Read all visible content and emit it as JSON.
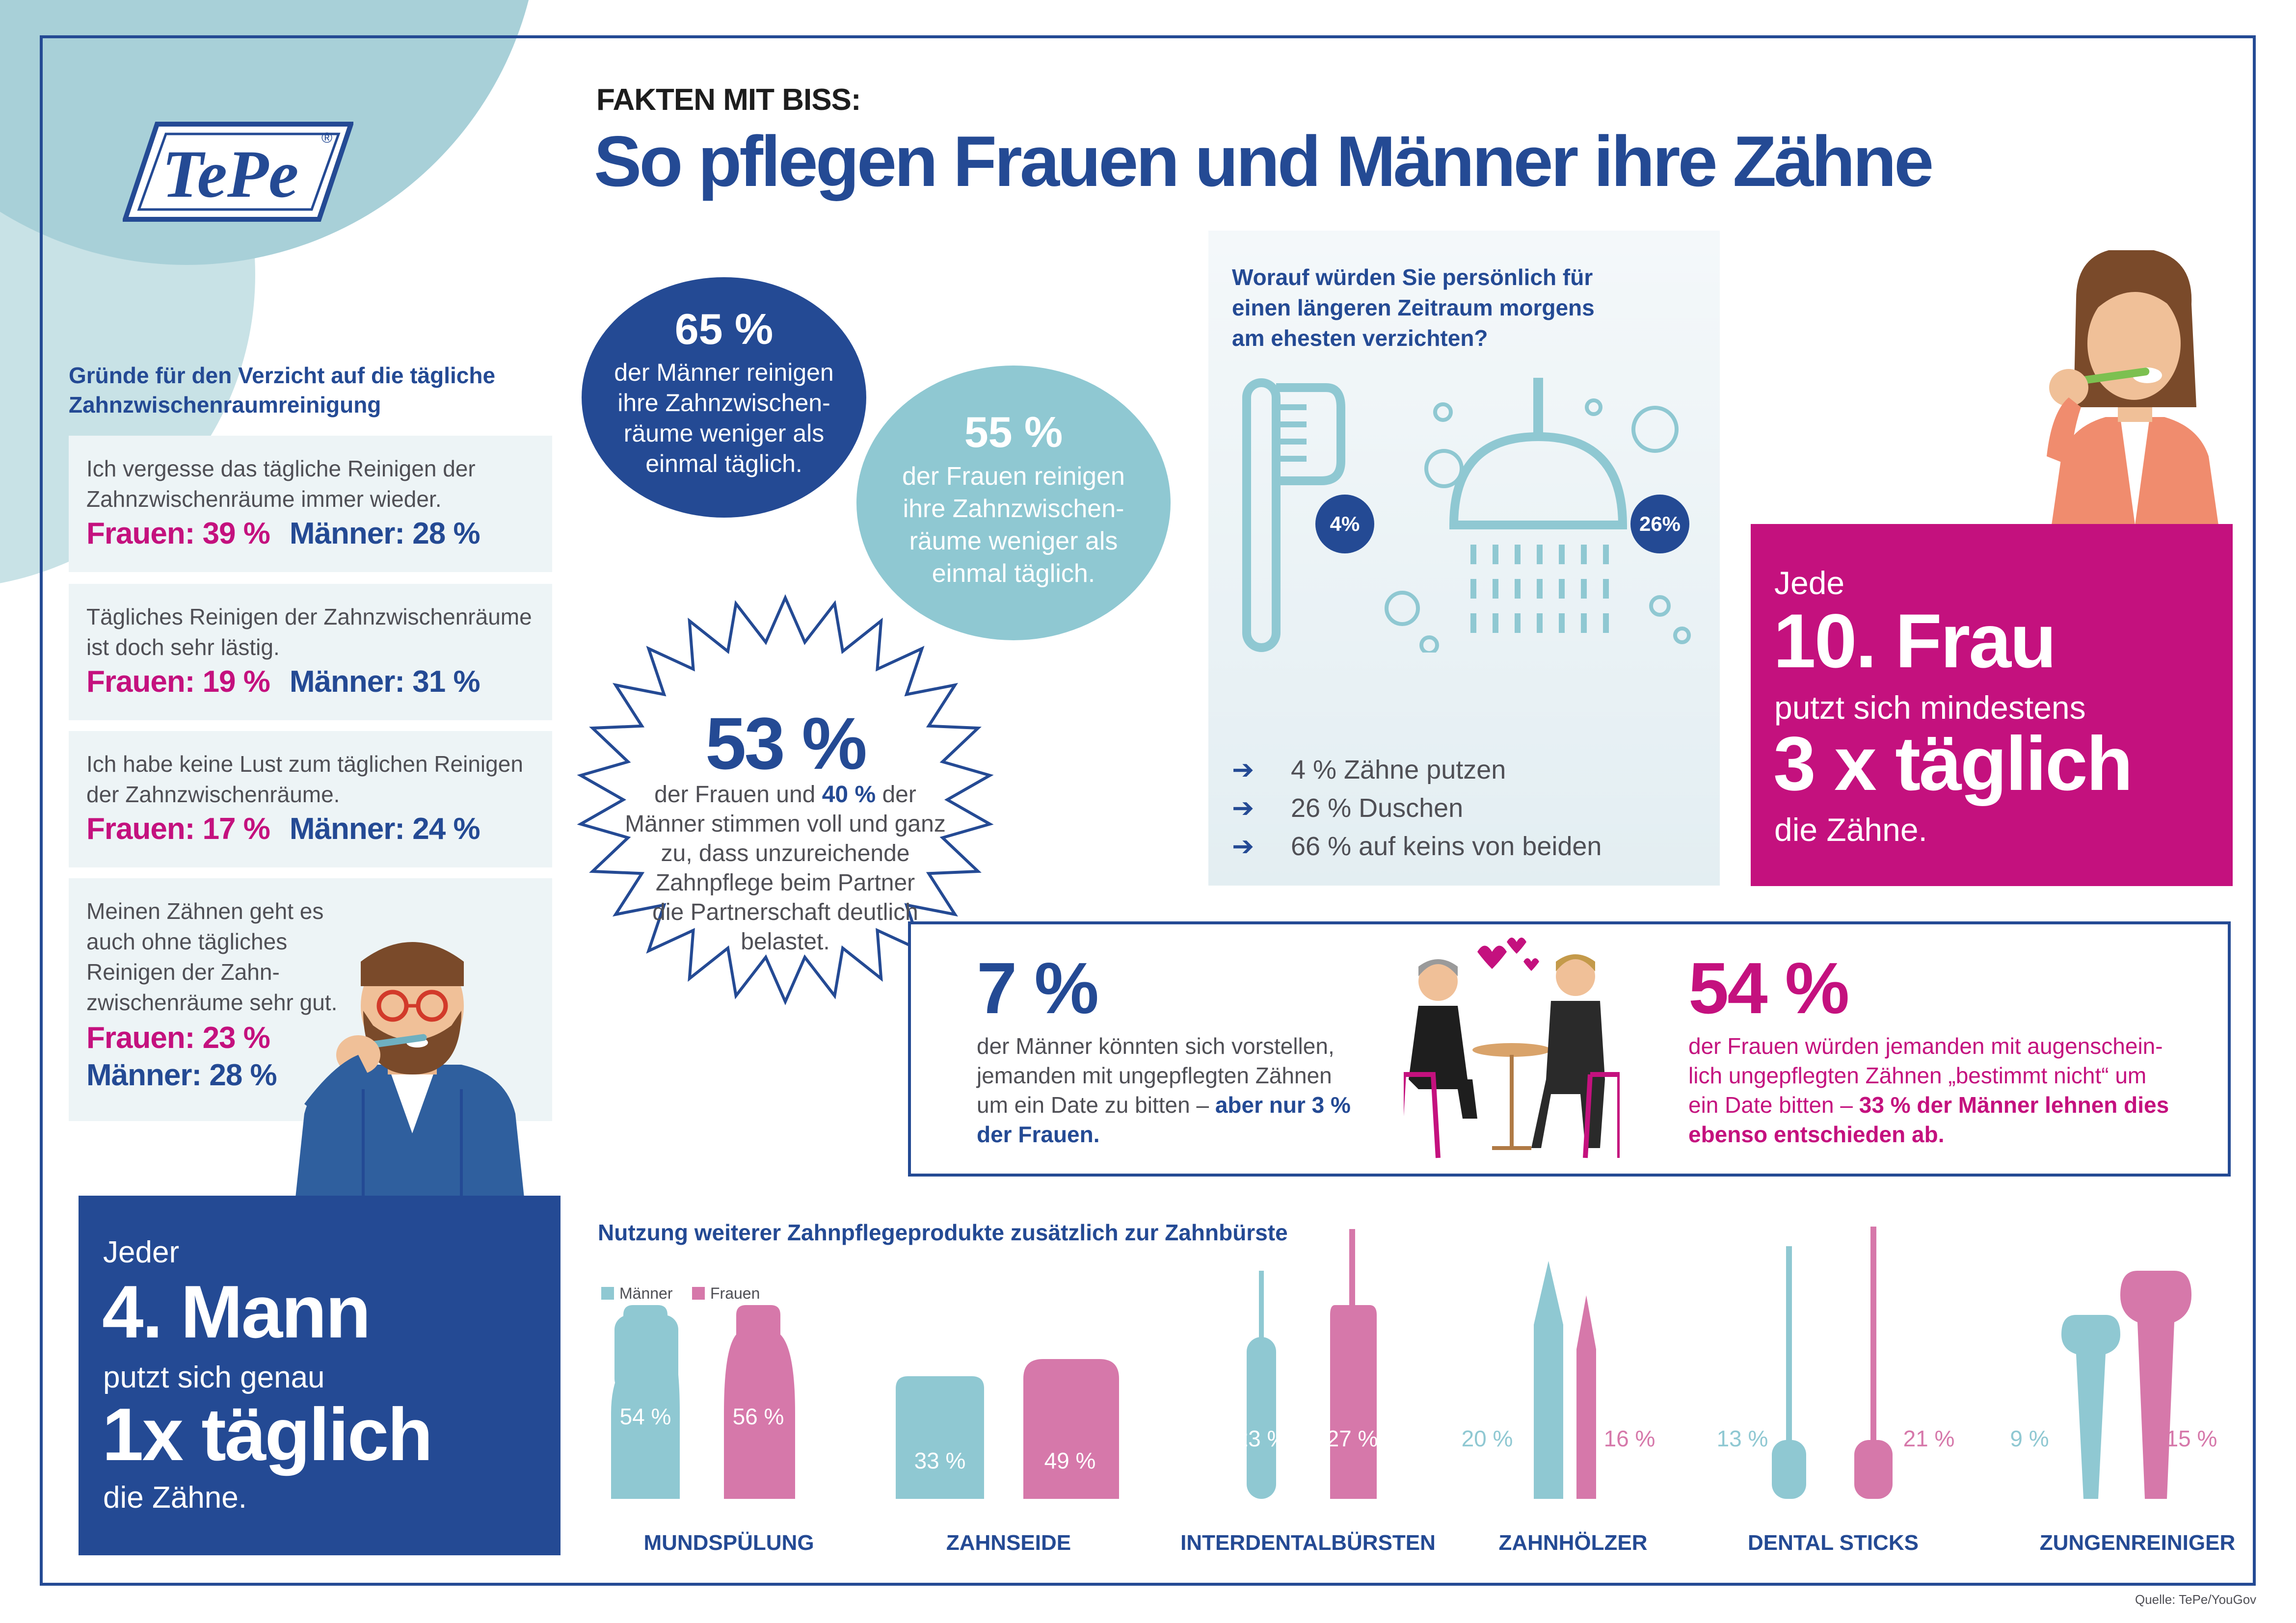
{
  "brand": {
    "logo": "TePe",
    "registered": "®"
  },
  "header": {
    "kicker": "FAKTEN MIT BISS:",
    "title": "So pflegen Frauen und Männer ihre Zähne"
  },
  "reasons": {
    "heading_line1": "Gründe für den Verzicht auf die tägliche",
    "heading_line2": "Zahnzwischenraumreinigung",
    "items": [
      {
        "lines": [
          "Ich vergesse das tägliche Reinigen der",
          "Zahnzwischenräume immer wieder."
        ],
        "frauen": "Frauen: 39 %",
        "maenner": "Männer: 28 %"
      },
      {
        "lines": [
          "Tägliches Reinigen der Zahnzwischenräume",
          "ist doch sehr lästig."
        ],
        "frauen": "Frauen: 19 %",
        "maenner": "Männer: 31 %"
      },
      {
        "lines": [
          "Ich habe keine Lust zum täglichen Reinigen",
          "der Zahnzwischenräume."
        ],
        "frauen": "Frauen: 17 %",
        "maenner": "Männer: 24 %"
      },
      {
        "lines": [
          "Meinen Zähnen geht es",
          "auch ohne tägliches",
          "Reinigen der Zahn-",
          "zwischenräume sehr gut."
        ],
        "frauen": "Frauen: 23 %",
        "maenner": "Männer: 28 %"
      }
    ]
  },
  "men_circle": {
    "value": "65 %",
    "lines": [
      "der Männer reinigen",
      "ihre Zahnzwischen-",
      "räume weniger als",
      "einmal täglich."
    ]
  },
  "women_circle": {
    "value": "55 %",
    "lines": [
      "der Frauen reinigen",
      "ihre Zahnzwischen-",
      "räume weniger als",
      "einmal täglich."
    ]
  },
  "burst": {
    "value": "53 %",
    "line1_a": "der Frauen und ",
    "line1_b": "40 %",
    "line1_c": " der",
    "lines": [
      "Männer stimmen voll und ganz",
      "zu, dass unzureichende",
      "Zahnpflege beim Partner",
      "die Partnerschaft deutlich",
      "belastet."
    ]
  },
  "survey": {
    "question_lines": [
      "Worauf würden Sie persönlich für",
      "einen längeren Zeitraum morgens",
      "am ehesten verzichten?"
    ],
    "badge_left": "4%",
    "badge_right": "26%",
    "answers": [
      "4 % Zähne putzen",
      "26 % Duschen",
      "66 % auf keins von beiden"
    ],
    "arrow_glyph": "➔"
  },
  "woman_box": {
    "l1": "Jede",
    "l2": "10. Frau",
    "l3": "putzt sich mindestens",
    "l4": "3 x täglich",
    "l5": "die Zähne."
  },
  "man_box": {
    "l1": "Jeder",
    "l2": "4. Mann",
    "l3": "putzt sich genau",
    "l4": "1x täglich",
    "l5": "die Zähne."
  },
  "date": {
    "men_value": "7 %",
    "men_lines": [
      "der Männer könnten sich vorstellen,",
      "jemanden mit ungepflegten Zähnen"
    ],
    "men_line3_a": "um ein Date zu bitten – ",
    "men_line3_b": "aber nur 3 %",
    "men_line4": "der Frauen.",
    "women_value": "54 %",
    "women_lines": [
      "der Frauen würden jemanden mit augenschein-",
      "lich ungepflegten Zähnen „bestimmt nicht“ um"
    ],
    "women_line3_a": "ein Date bitten –  ",
    "women_line3_b": "33 % der Männer lehnen dies",
    "women_line4": "ebenso entschieden ab."
  },
  "products": {
    "heading": "Nutzung weiterer Zahnpflegeprodukte zusätzlich zur Zahnbürste",
    "legend": {
      "men": "Männer",
      "women": "Frauen"
    },
    "colors": {
      "men": "#8fc8d2",
      "women": "#d678aa"
    },
    "items": [
      {
        "name": "MUNDSPÜLUNG",
        "men": "54 %",
        "women": "56 %"
      },
      {
        "name": "ZAHNSEIDE",
        "men": "33 %",
        "women": "49 %"
      },
      {
        "name": "INTERDENTALBÜRSTEN",
        "men": "23 %",
        "women": "27 %"
      },
      {
        "name": "ZAHNHÖLZER",
        "men": "20 %",
        "women": "16 %"
      },
      {
        "name": "DENTAL STICKS",
        "men": "13 %",
        "women": "21 %"
      },
      {
        "name": "ZUNGENREINIGER",
        "men": "9 %",
        "women": "15 %"
      }
    ]
  },
  "source": "Quelle: TePe/YouGov",
  "colors": {
    "navy": "#244a94",
    "pink": "#c4117e",
    "light_teal": "#8fc8d2",
    "pale_bg": "#edf4f6"
  }
}
